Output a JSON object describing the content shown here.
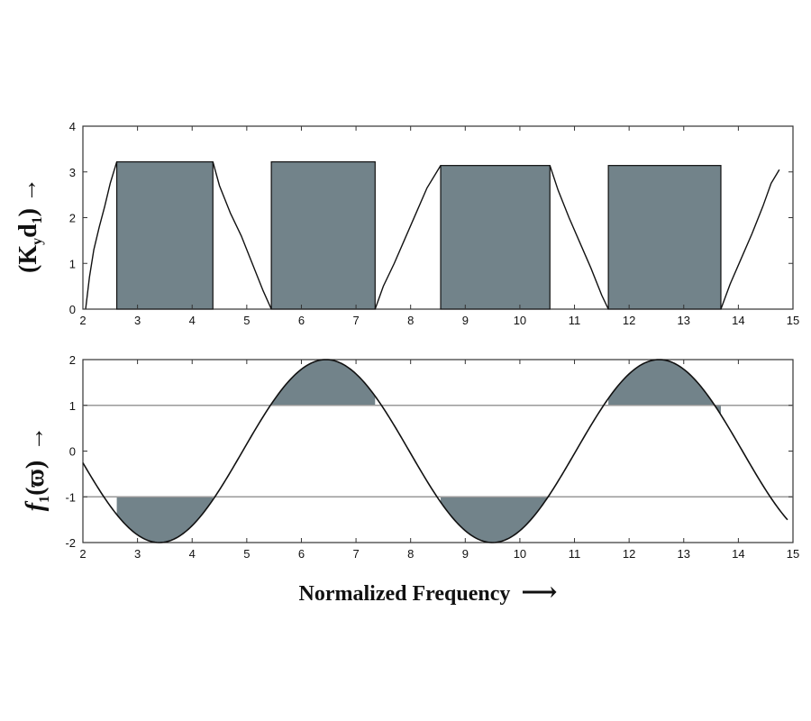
{
  "chart_data": [
    {
      "type": "area",
      "name_key": "top",
      "ylabel": "(K",
      "ylabel_sub1": "y",
      "ylabel_mid": "d",
      "ylabel_sub2": "1",
      "ylabel_tail": ")",
      "ylabel_arrow": "→",
      "xlim": [
        2,
        15
      ],
      "ylim": [
        0,
        4
      ],
      "xticks": [
        2,
        3,
        4,
        5,
        6,
        7,
        8,
        9,
        10,
        11,
        12,
        13,
        14,
        15
      ],
      "yticks": [
        0,
        1,
        2,
        3,
        4
      ],
      "bands": [
        {
          "x_start": 2.62,
          "x_end": 4.38,
          "height": 3.22
        },
        {
          "x_start": 5.45,
          "x_end": 7.35,
          "height": 3.22
        },
        {
          "x_start": 8.55,
          "x_end": 10.55,
          "height": 3.14
        },
        {
          "x_start": 11.62,
          "x_end": 13.68,
          "height": 3.14
        }
      ],
      "curve_segments": [
        {
          "x": [
            2.05,
            2.12,
            2.2,
            2.3,
            2.4,
            2.5,
            2.62
          ],
          "y": [
            0,
            0.7,
            1.3,
            1.8,
            2.25,
            2.75,
            3.22
          ]
        },
        {
          "x": [
            4.38,
            4.5,
            4.7,
            4.9,
            5.1,
            5.3,
            5.45
          ],
          "y": [
            3.22,
            2.7,
            2.1,
            1.6,
            1.0,
            0.4,
            0
          ]
        },
        {
          "x": [
            7.35,
            7.5,
            7.7,
            7.9,
            8.1,
            8.3,
            8.55
          ],
          "y": [
            0,
            0.5,
            1.0,
            1.55,
            2.1,
            2.65,
            3.14
          ]
        },
        {
          "x": [
            10.55,
            10.7,
            10.9,
            11.1,
            11.3,
            11.5,
            11.62
          ],
          "y": [
            3.14,
            2.6,
            2.0,
            1.45,
            0.9,
            0.3,
            0
          ]
        },
        {
          "x": [
            13.68,
            13.85,
            14.05,
            14.25,
            14.45,
            14.6,
            14.75
          ],
          "y": [
            0,
            0.55,
            1.1,
            1.65,
            2.25,
            2.75,
            3.05
          ]
        }
      ]
    },
    {
      "type": "line",
      "name_key": "bottom",
      "ylabel": "f",
      "ylabel_sub1": "1",
      "ylabel_paren": "(ϖ)",
      "ylabel_arrow": "→",
      "xlabel": "Normalized Frequency",
      "xlabel_arrow": "⟶",
      "xlim": [
        2,
        15
      ],
      "ylim": [
        -2,
        2
      ],
      "xticks": [
        2,
        3,
        4,
        5,
        6,
        7,
        8,
        9,
        10,
        11,
        12,
        13,
        14,
        15
      ],
      "yticks": [
        -2,
        -1,
        0,
        1,
        2
      ],
      "hlines": [
        1,
        -1
      ],
      "curve": {
        "amplitude": 2,
        "period": 6.1,
        "peak_x": 6.45,
        "x_start": 2,
        "x_end": 14.9
      },
      "shaded_regions": [
        {
          "x_start": 2.62,
          "x_end": 4.38,
          "side": "below",
          "level": -1
        },
        {
          "x_start": 5.45,
          "x_end": 7.35,
          "side": "above",
          "level": 1
        },
        {
          "x_start": 8.55,
          "x_end": 10.55,
          "side": "below",
          "level": -1
        },
        {
          "x_start": 11.62,
          "x_end": 13.68,
          "side": "above",
          "level": 1
        }
      ]
    }
  ],
  "colors": {
    "fill": "#72838a",
    "line": "#111111",
    "hline": "#999999",
    "axes": "#333333"
  }
}
